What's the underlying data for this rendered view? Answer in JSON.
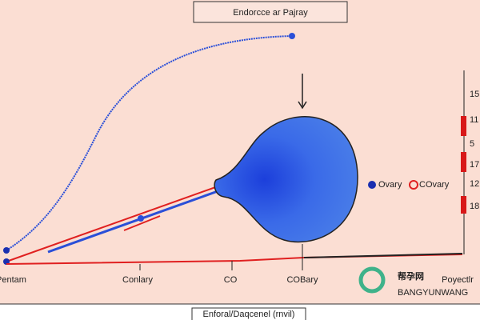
{
  "header": {
    "title": "Endorcce ar Pajray"
  },
  "axis_labels": [
    "Pentam",
    "Conlary",
    "CO",
    "COBary",
    "Poyectlr"
  ],
  "legend": [
    "Ovary",
    "COvary"
  ],
  "right_scale": [
    "15",
    "11",
    "5",
    "17",
    "12",
    "18"
  ],
  "footer": {
    "title": "Enforal/Daqcenel (rnvil)"
  },
  "watermark": {
    "main": "帮孕网",
    "sub": "BANGYUNWANG"
  }
}
